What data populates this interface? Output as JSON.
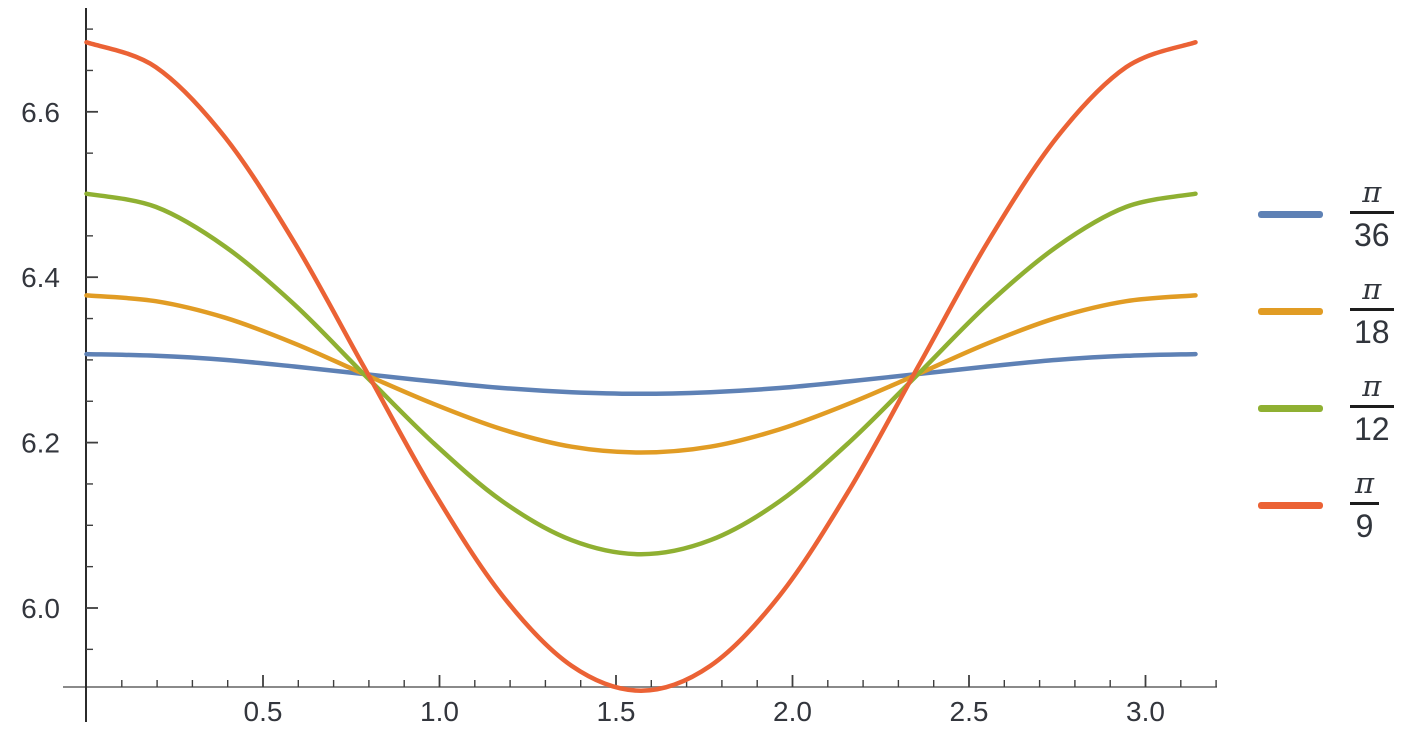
{
  "chart_data": {
    "type": "line",
    "title": "",
    "xlabel": "",
    "ylabel": "",
    "xlim": [
      0,
      3.2
    ],
    "ylim": [
      5.86,
      6.73
    ],
    "grid": false,
    "legend_position": "right-center",
    "background": "#ffffff",
    "axis_style": {
      "x_axis_color": "#8a8a8a",
      "y_axis_color": "#2b2b2b",
      "tick_color": "#3f3f3f",
      "label_color": "#33363d"
    },
    "x_ticks": {
      "major": [
        {
          "v": 0.5,
          "label": "0.5"
        },
        {
          "v": 1.0,
          "label": "1.0"
        },
        {
          "v": 1.5,
          "label": "1.5"
        },
        {
          "v": 2.0,
          "label": "2.0"
        },
        {
          "v": 2.5,
          "label": "2.5"
        },
        {
          "v": 3.0,
          "label": "3.0"
        }
      ],
      "minor_start": 0.1,
      "minor_end": 3.2,
      "minor_step": 0.1
    },
    "y_ticks": {
      "major": [
        {
          "v": 6.0,
          "label": "6.0"
        },
        {
          "v": 6.2,
          "label": "6.2"
        },
        {
          "v": 6.4,
          "label": "6.4"
        },
        {
          "v": 6.6,
          "label": "6.6"
        }
      ],
      "minor_start": 5.95,
      "minor_end": 6.7,
      "minor_step": 0.05
    },
    "x": [
      0,
      0.1963,
      0.3927,
      0.589,
      0.7854,
      0.9817,
      1.1781,
      1.3744,
      1.5708,
      1.7671,
      1.9635,
      2.1598,
      2.3562,
      2.5525,
      2.7489,
      2.9452,
      3.1416
    ],
    "series": [
      {
        "name": "π/36",
        "id": "pi-36",
        "numerator": "π",
        "denominator": "36",
        "color": "#5E81B5",
        "values": [
          6.307,
          6.305,
          6.3,
          6.292,
          6.283,
          6.274,
          6.266,
          6.261,
          6.259,
          6.261,
          6.266,
          6.274,
          6.283,
          6.292,
          6.3,
          6.305,
          6.307
        ]
      },
      {
        "name": "π/18",
        "id": "pi-18",
        "numerator": "π",
        "denominator": "18",
        "color": "#E19C24",
        "values": [
          6.378,
          6.371,
          6.351,
          6.32,
          6.283,
          6.247,
          6.216,
          6.195,
          6.188,
          6.195,
          6.216,
          6.247,
          6.283,
          6.32,
          6.351,
          6.371,
          6.378
        ]
      },
      {
        "name": "π/12",
        "id": "pi-12",
        "numerator": "π",
        "denominator": "12",
        "color": "#8FB032",
        "values": [
          6.501,
          6.485,
          6.437,
          6.367,
          6.283,
          6.2,
          6.129,
          6.082,
          6.065,
          6.082,
          6.129,
          6.2,
          6.283,
          6.367,
          6.437,
          6.485,
          6.501
        ]
      },
      {
        "name": "π/9",
        "id": "pi-9",
        "numerator": "π",
        "denominator": "9",
        "color": "#EB6235",
        "values": [
          6.684,
          6.654,
          6.569,
          6.442,
          6.292,
          6.142,
          6.015,
          5.93,
          5.9,
          5.93,
          6.015,
          6.142,
          6.292,
          6.442,
          6.569,
          6.654,
          6.684
        ]
      }
    ]
  }
}
